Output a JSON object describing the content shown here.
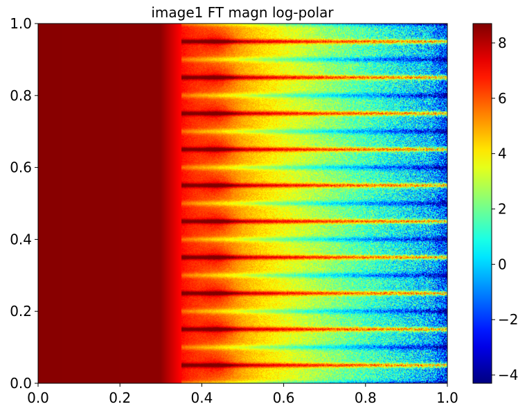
{
  "chart_data": {
    "type": "heatmap",
    "title": "image1 FT magn log-polar",
    "xlabel": "",
    "ylabel": "",
    "xlim": [
      0.0,
      1.0
    ],
    "ylim": [
      0.0,
      1.0
    ],
    "x_ticks": [
      {
        "value": 0.0,
        "label": "0.0"
      },
      {
        "value": 0.2,
        "label": "0.2"
      },
      {
        "value": 0.4,
        "label": "0.4"
      },
      {
        "value": 0.6,
        "label": "0.6"
      },
      {
        "value": 0.8,
        "label": "0.8"
      },
      {
        "value": 1.0,
        "label": "1.0"
      }
    ],
    "y_ticks": [
      {
        "value": 0.0,
        "label": "0.0"
      },
      {
        "value": 0.2,
        "label": "0.2"
      },
      {
        "value": 0.4,
        "label": "0.4"
      },
      {
        "value": 0.6,
        "label": "0.6"
      },
      {
        "value": 0.8,
        "label": "0.8"
      },
      {
        "value": 1.0,
        "label": "1.0"
      }
    ],
    "colormap": "jet",
    "colorbar": {
      "range": [
        -4.3,
        8.7
      ],
      "ticks": [
        {
          "value": -4,
          "label": "−4"
        },
        {
          "value": -2,
          "label": "−2"
        },
        {
          "value": 0,
          "label": "0"
        },
        {
          "value": 2,
          "label": "2"
        },
        {
          "value": 4,
          "label": "4"
        },
        {
          "value": 6,
          "label": "6"
        },
        {
          "value": 8,
          "label": "8"
        }
      ]
    },
    "pattern": {
      "saturated_until_x": 0.3,
      "red_transition_x": 0.35,
      "peak_blob_x": 0.44,
      "bright_streak_y": [
        0.05,
        0.15,
        0.25,
        0.35,
        0.45,
        0.55,
        0.65,
        0.75,
        0.85,
        0.95
      ],
      "dark_band_y": [
        0.0,
        0.1,
        0.2,
        0.3,
        0.4,
        0.5,
        0.6,
        0.7,
        0.8,
        0.9,
        1.0
      ],
      "value_at_left": 8.6,
      "value_at_right_noise_min": -3.5
    }
  }
}
